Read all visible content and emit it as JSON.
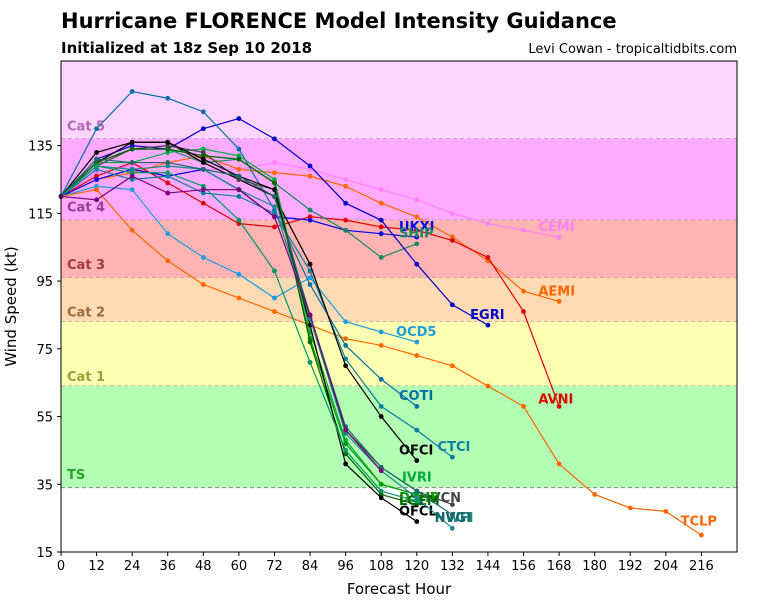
{
  "title": "Hurricane FLORENCE Model Intensity Guidance",
  "subtitle": "Initialized at 18z Sep 10 2018",
  "credit": "Levi Cowan - tropicaltidbits.com",
  "chart_data": {
    "type": "line",
    "xlabel": "Forecast Hour",
    "ylabel": "Wind Speed (kt)",
    "xlim": [
      0,
      228
    ],
    "ylim": [
      15,
      160
    ],
    "xticks": [
      0,
      12,
      24,
      36,
      48,
      60,
      72,
      84,
      96,
      108,
      120,
      132,
      144,
      156,
      168,
      180,
      192,
      204,
      216
    ],
    "yticks": [
      15,
      35,
      55,
      75,
      95,
      115,
      135
    ],
    "grid": false,
    "bands": [
      {
        "label": "Cat 5",
        "from": 137,
        "to": 160,
        "color": "#ffd5ff",
        "label_color": "#b367b3",
        "label_y": 141
      },
      {
        "label": "Cat 4",
        "from": 113,
        "to": 137,
        "color": "#ffaaff",
        "label_color": "#9b3b9b",
        "label_y": 117
      },
      {
        "label": "Cat 3",
        "from": 96,
        "to": 113,
        "color": "#ffb3b3",
        "label_color": "#a33a3a",
        "label_y": 100
      },
      {
        "label": "Cat 2",
        "from": 83,
        "to": 96,
        "color": "#ffdab3",
        "label_color": "#9e6b34",
        "label_y": 86
      },
      {
        "label": "Cat 1",
        "from": 64,
        "to": 83,
        "color": "#ffffb3",
        "label_color": "#9e9e34",
        "label_y": 67
      },
      {
        "label": "TS",
        "from": 34,
        "to": 64,
        "color": "#b3ffb3",
        "label_color": "#2aa52a",
        "label_y": 38
      }
    ],
    "series": [
      {
        "name": "CEMI",
        "color": "#ff80ff",
        "x": [
          0,
          12,
          24,
          36,
          48,
          60,
          72,
          84,
          96,
          108,
          120,
          132,
          144,
          156,
          168
        ],
        "y": [
          120,
          127,
          129,
          130,
          128,
          128,
          130,
          128,
          125,
          122,
          119,
          115,
          112,
          110,
          108
        ],
        "label": {
          "x": 161,
          "y": 111
        }
      },
      {
        "name": "AEMI",
        "color": "#ff6600",
        "x": [
          0,
          12,
          24,
          36,
          48,
          60,
          72,
          84,
          96,
          108,
          120,
          132,
          144,
          156,
          168
        ],
        "y": [
          120,
          125,
          127,
          130,
          132,
          128,
          127,
          126,
          123,
          118,
          114,
          108,
          101,
          92,
          89
        ],
        "label": {
          "x": 161,
          "y": 92
        }
      },
      {
        "name": "AVNI",
        "color": "#e00000",
        "x": [
          0,
          12,
          24,
          36,
          48,
          60,
          72,
          84,
          96,
          108,
          120,
          132,
          144,
          156,
          168
        ],
        "y": [
          120,
          126,
          130,
          124,
          118,
          112,
          111,
          114,
          113,
          111,
          110,
          107,
          102,
          86,
          58
        ],
        "label": {
          "x": 161,
          "y": 60
        }
      },
      {
        "name": "UKXI",
        "color": "#0000ee",
        "x": [
          0,
          12,
          24,
          36,
          48,
          60,
          72,
          84,
          96,
          108,
          120
        ],
        "y": [
          120,
          125,
          128,
          126,
          128,
          122,
          114,
          113,
          110,
          109,
          108
        ],
        "label": {
          "x": 114,
          "y": 111
        }
      },
      {
        "name": "SHIP",
        "color": "#1a8a60",
        "x": [
          0,
          12,
          24,
          36,
          48,
          60,
          72,
          84,
          96,
          108,
          120
        ],
        "y": [
          120,
          130,
          134,
          134,
          130,
          131,
          124,
          116,
          110,
          102,
          106
        ],
        "label": {
          "x": 114,
          "y": 109
        }
      },
      {
        "name": "EGRI",
        "color": "#0000cc",
        "x": [
          0,
          12,
          24,
          36,
          48,
          60,
          72,
          84,
          96,
          108,
          120,
          132,
          144
        ],
        "y": [
          120,
          131,
          135,
          134,
          140,
          143,
          137,
          129,
          118,
          113,
          100,
          88,
          82
        ],
        "label": {
          "x": 138,
          "y": 85
        }
      },
      {
        "name": "OCD5",
        "color": "#1e9ce0",
        "x": [
          0,
          12,
          24,
          36,
          48,
          60,
          72,
          84,
          96,
          108,
          120
        ],
        "y": [
          120,
          123,
          122,
          109,
          102,
          97,
          90,
          96,
          83,
          80,
          77
        ],
        "label": {
          "x": 113,
          "y": 80
        }
      },
      {
        "name": "TCLP",
        "color": "#ff6600",
        "x": [
          0,
          12,
          24,
          36,
          48,
          60,
          72,
          84,
          96,
          108,
          120,
          132,
          144,
          156,
          168,
          180,
          192,
          204,
          216
        ],
        "y": [
          120,
          122,
          110,
          101,
          94,
          90,
          86,
          82,
          78,
          76,
          73,
          70,
          64,
          58,
          41,
          32,
          28,
          27,
          20
        ],
        "label": {
          "x": 209,
          "y": 24
        }
      },
      {
        "name": "COTI",
        "color": "#0a6fa8",
        "x": [
          0,
          12,
          24,
          36,
          48,
          60,
          72,
          84,
          96,
          108,
          120
        ],
        "y": [
          120,
          140,
          151,
          149,
          145,
          134,
          116,
          94,
          76,
          66,
          58
        ],
        "label": {
          "x": 114,
          "y": 61
        }
      },
      {
        "name": "CTCI",
        "color": "#0a7fa0",
        "x": [
          0,
          12,
          24,
          36,
          48,
          60,
          72,
          84,
          96,
          108,
          120,
          132
        ],
        "y": [
          120,
          128,
          125,
          126,
          121,
          120,
          115,
          98,
          72,
          58,
          51,
          43
        ],
        "label": {
          "x": 127,
          "y": 46
        }
      },
      {
        "name": "OFCI",
        "color": "#000000",
        "x": [
          0,
          12,
          24,
          36,
          48,
          60,
          72,
          84,
          96,
          108,
          120
        ],
        "y": [
          120,
          130,
          136,
          136,
          130,
          125,
          120,
          100,
          70,
          55,
          42
        ],
        "label": {
          "x": 114,
          "y": 45
        }
      },
      {
        "name": "IVRI",
        "color": "#00aa44",
        "x": [
          0,
          12,
          24,
          36,
          48,
          60,
          72,
          84,
          96,
          108,
          120
        ],
        "y": [
          120,
          130,
          130,
          133,
          134,
          132,
          125,
          80,
          48,
          35,
          32
        ],
        "label": {
          "x": 115,
          "y": 37
        }
      },
      {
        "name": "IVCN",
        "color": "#444444",
        "x": [
          0,
          12,
          24,
          36,
          48,
          60,
          72,
          84,
          96,
          108,
          120,
          132
        ],
        "y": [
          120,
          129,
          134,
          135,
          133,
          125,
          122,
          84,
          51,
          40,
          33,
          29
        ],
        "label": {
          "x": 123,
          "y": 31
        }
      },
      {
        "name": "DSHP",
        "color": "#009900",
        "x": [
          0,
          12,
          24,
          36,
          48,
          60,
          72,
          84,
          96,
          108,
          120
        ],
        "y": [
          120,
          130,
          134,
          134,
          132,
          131,
          124,
          78,
          47,
          35,
          32
        ],
        "label": {
          "x": 114,
          "y": 31
        }
      },
      {
        "name": "LGEM",
        "color": "#006600",
        "x": [
          0,
          12,
          24,
          36,
          48,
          60,
          72,
          84,
          96,
          108,
          120
        ],
        "y": [
          120,
          130,
          134,
          134,
          132,
          131,
          124,
          77,
          44,
          32,
          29
        ],
        "label": {
          "x": 114,
          "y": 30
        }
      },
      {
        "name": "OFCL",
        "color": "#000000",
        "x": [
          0,
          12,
          24,
          36,
          48,
          60,
          72,
          84,
          96,
          108,
          120
        ],
        "y": [
          120,
          133,
          136,
          136,
          131,
          126,
          122,
          82,
          41,
          31,
          24
        ],
        "label": {
          "x": 114,
          "y": 27
        }
      },
      {
        "name": "HWFI",
        "color": "#1a8a8a",
        "x": [
          0,
          12,
          24,
          36,
          48,
          60,
          72,
          84,
          96,
          108,
          120,
          132
        ],
        "y": [
          120,
          129,
          128,
          129,
          128,
          122,
          117,
          84,
          50,
          39,
          31,
          22
        ],
        "label": {
          "x": 126,
          "y": 25
        }
      },
      {
        "name": "NVGI",
        "color": "#1a6a6a",
        "x": [
          0,
          12,
          24,
          36,
          48,
          60,
          72,
          84,
          96,
          108,
          120,
          132
        ],
        "y": [
          120,
          131,
          130,
          130,
          128,
          126,
          120,
          85,
          52,
          40,
          33,
          26
        ],
        "label": {
          "x": 126,
          "y": 25
        }
      },
      {
        "name": "",
        "color": "#009966",
        "x": [
          0,
          12,
          24,
          36,
          48,
          60,
          72,
          84,
          96,
          108,
          120
        ],
        "y": [
          120,
          129,
          127,
          127,
          123,
          113,
          98,
          71,
          45,
          33,
          30
        ],
        "label": null
      },
      {
        "name": "",
        "color": "#7a007a",
        "x": [
          0,
          12,
          24,
          36,
          48,
          60,
          72,
          84,
          96,
          108
        ],
        "y": [
          120,
          119,
          126,
          121,
          122,
          122,
          114,
          85,
          51,
          39
        ],
        "label": null
      }
    ]
  }
}
